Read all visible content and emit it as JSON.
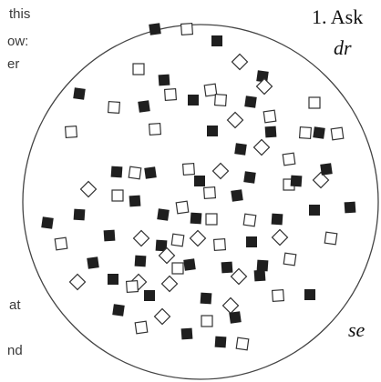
{
  "left_text": [
    "this",
    "ow:",
    "er",
    "at",
    "nd"
  ],
  "right_text": {
    "question_heading": "1. Ask",
    "line2": "dr",
    "line3": "se"
  },
  "colors": {
    "filled": "#1f1f1f",
    "outline": "#333333",
    "circle": "#444444"
  },
  "legend_note": "filled squares and open squares/diamonds scattered in a circle",
  "counts": {
    "filled": 46,
    "open": 54
  }
}
